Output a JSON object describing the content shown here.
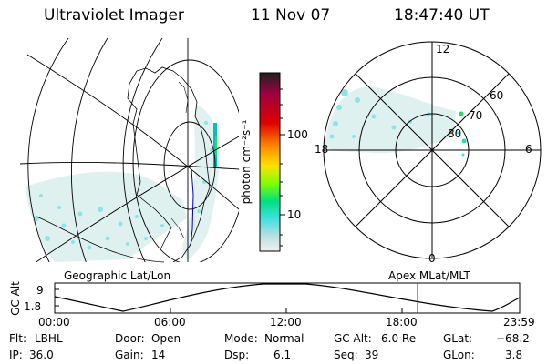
{
  "header": {
    "instrument": "Ultraviolet Imager",
    "date": "11 Nov 07",
    "time": "18:47:40 UT"
  },
  "colorbar": {
    "unit": "photon cm⁻²s⁻¹",
    "ticks": [
      "100",
      "10"
    ],
    "stops": [
      "#202020",
      "#a00040",
      "#e00000",
      "#ff9000",
      "#ffe000",
      "#80ff00",
      "#00e080",
      "#40e0e0",
      "#c0e0e0",
      "#f0f0f0"
    ]
  },
  "polar_plot": {
    "mlt_labels": [
      "12",
      "18",
      "6",
      "0"
    ],
    "lat_labels": [
      "60",
      "70",
      "80"
    ]
  },
  "altitude_plot": {
    "left_title": "Geographic Lat/Lon",
    "right_title": "Apex MLat/MLT",
    "ylabel": "GC Alt",
    "yticks": [
      "9",
      "1.8"
    ],
    "xticks": [
      "00:00",
      "06:00",
      "12:00",
      "18:00",
      "23:59"
    ]
  },
  "info": {
    "row1": [
      {
        "label": "Flt:",
        "value": "LBHL"
      },
      {
        "label": "Door:",
        "value": "Open"
      },
      {
        "label": "Mode:",
        "value": "Normal"
      },
      {
        "label": "GC Alt:",
        "value": "6.0 Re"
      },
      {
        "label": "GLat:",
        "value": "−68.2"
      }
    ],
    "row2": [
      {
        "label": "IP:",
        "value": "36.0"
      },
      {
        "label": "Gain:",
        "value": "14"
      },
      {
        "label": "Dsp:",
        "value": "6.1"
      },
      {
        "label": "Seq:",
        "value": "39"
      },
      {
        "label": "GLon:",
        "value": "3.8"
      }
    ]
  },
  "colors": {
    "aurora_light": "#d8f0ee",
    "aurora_cyan": "#60e0e0",
    "aurora_green": "#20e060",
    "time_marker": "#c00000",
    "track": "#0000c0"
  }
}
